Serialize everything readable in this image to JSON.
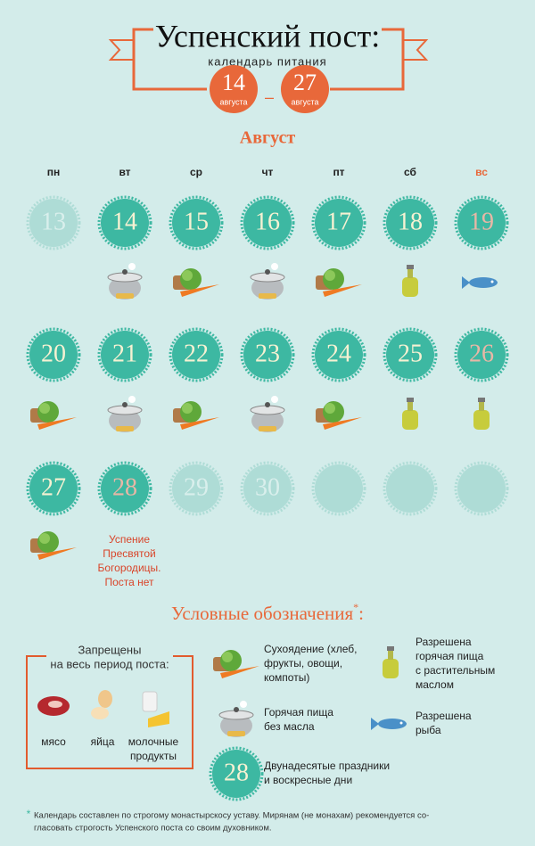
{
  "header": {
    "title": "Успенский пост:",
    "subtitle": "календарь питания",
    "start": {
      "day": "14",
      "month": "августа"
    },
    "dash": "–",
    "end": {
      "day": "27",
      "month": "августа"
    }
  },
  "month": "Август",
  "weekdays": [
    "пн",
    "вт",
    "ср",
    "чт",
    "пт",
    "сб",
    "вс"
  ],
  "weeks": [
    [
      "13",
      "14",
      "15",
      "16",
      "17",
      "18",
      "19"
    ],
    [
      "20",
      "21",
      "22",
      "23",
      "24",
      "25",
      "26"
    ],
    [
      "27",
      "28",
      "29",
      "30",
      null,
      null,
      null
    ]
  ],
  "feast_note": [
    "Успение",
    "Пресвятой",
    "Богородицы.",
    "Поста нет"
  ],
  "legend": {
    "title": "Условные обозначения",
    "mark": "*",
    "title_end": ":",
    "forbidden": {
      "title": [
        "Запрещены",
        "на весь период поста:"
      ],
      "items": [
        [
          "мясо"
        ],
        [
          "яйца"
        ],
        [
          "молочные",
          "продукты"
        ]
      ]
    },
    "items": [
      {
        "label": [
          "Сухоядение (хлеб,",
          "фрукты, овощи,",
          "компоты)"
        ]
      },
      {
        "label": [
          "Горячая пища",
          "без масла"
        ]
      },
      {
        "label": [
          "Разрешена",
          "горячая пища",
          "с растительным",
          "маслом"
        ]
      },
      {
        "label": [
          "Разрешена",
          "рыба"
        ]
      },
      {
        "sample": "28",
        "label": [
          "Двунадесятые праздники",
          "и воскресные дни"
        ]
      }
    ]
  },
  "footnote": {
    "mark": "*",
    "lines": [
      "Календарь составлен по строгому монастырскосу уставу. Мирянам (не монахам) рекомендуется со-",
      "гласовать строгость Успенского поста со своим духовником."
    ]
  }
}
